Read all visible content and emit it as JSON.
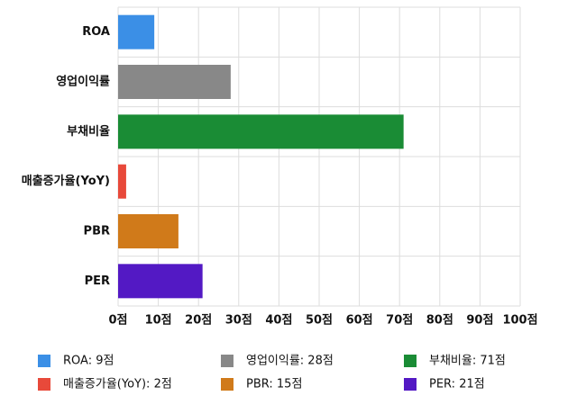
{
  "chart_data": {
    "type": "bar",
    "orientation": "horizontal",
    "categories": [
      "ROA",
      "영업이익률",
      "부채비율",
      "매출증가율(YoY)",
      "PBR",
      "PER"
    ],
    "values": [
      9,
      28,
      71,
      2,
      15,
      21
    ],
    "colors": [
      "#3b8fe6",
      "#888888",
      "#1a8c35",
      "#e8493a",
      "#d07a1a",
      "#5319c4"
    ],
    "legend_labels": [
      "ROA: 9점",
      "영업이익률: 28점",
      "부채비율: 71점",
      "매출증가율(YoY): 2점",
      "PBR: 15점",
      "PER: 21점"
    ],
    "xlim": [
      0,
      100
    ],
    "xticks": [
      {
        "value": 0,
        "label": "0점"
      },
      {
        "value": 10,
        "label": "10점"
      },
      {
        "value": 20,
        "label": "20점"
      },
      {
        "value": 30,
        "label": "30점"
      },
      {
        "value": 40,
        "label": "40점"
      },
      {
        "value": 50,
        "label": "50점"
      },
      {
        "value": 60,
        "label": "60점"
      },
      {
        "value": 70,
        "label": "70점"
      },
      {
        "value": 80,
        "label": "80점"
      },
      {
        "value": 90,
        "label": "90점"
      },
      {
        "value": 100,
        "label": "100점"
      }
    ],
    "grid": true
  }
}
